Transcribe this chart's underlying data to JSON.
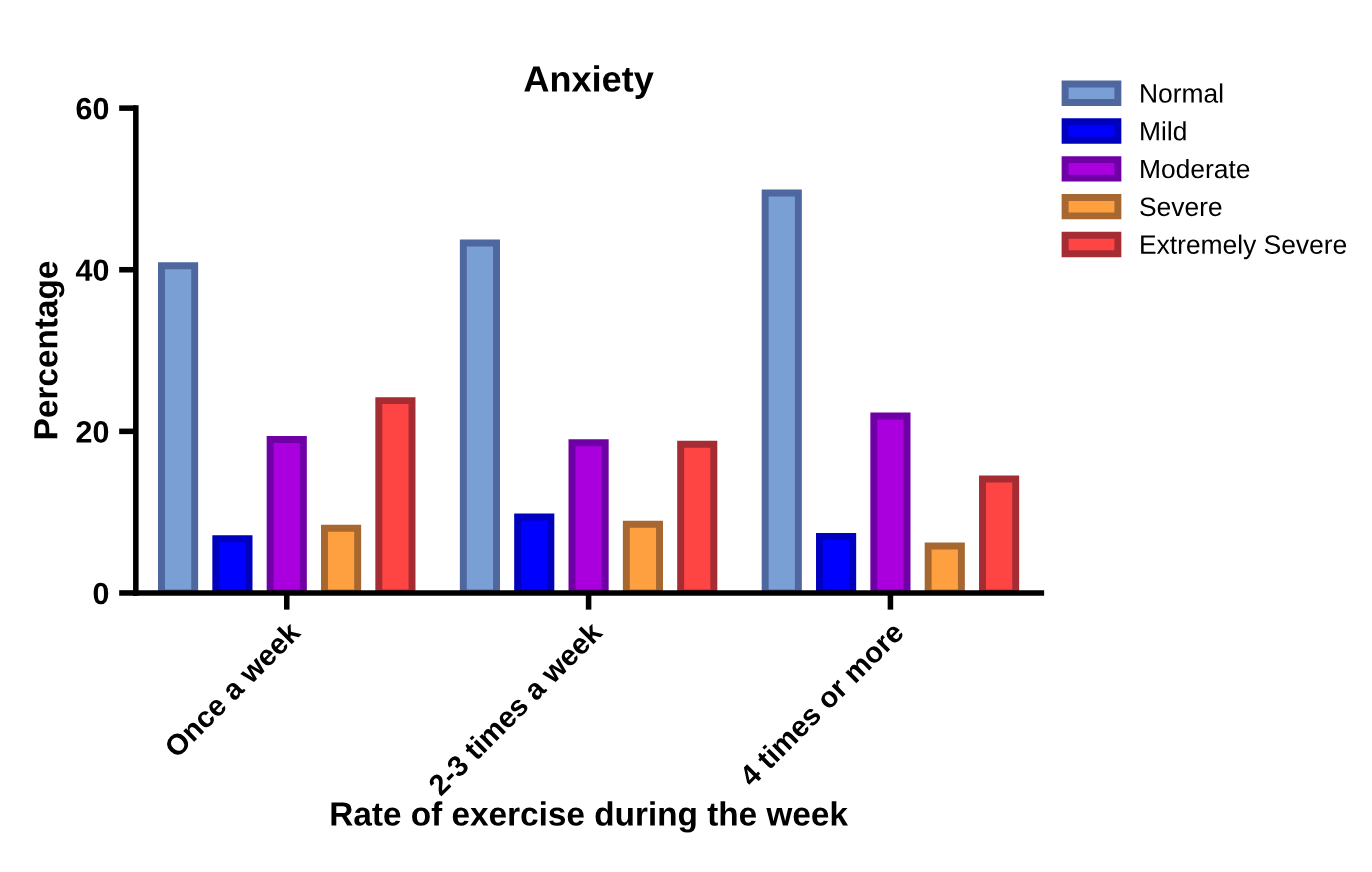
{
  "chart_data": {
    "type": "bar",
    "title": "Anxiety",
    "xlabel": "Rate of exercise during the week",
    "ylabel": "Percentage",
    "categories": [
      "Once a week",
      "2-3 times a week",
      "4 times or more"
    ],
    "series": [
      {
        "name": "Normal",
        "color": "#7a9fd4",
        "values": [
          40.5,
          43.3,
          49.5
        ]
      },
      {
        "name": "Mild",
        "color": "#0000ff",
        "values": [
          6.7,
          9.4,
          7.0
        ]
      },
      {
        "name": "Moderate",
        "color": "#aa00dd",
        "values": [
          19.0,
          18.6,
          21.9
        ]
      },
      {
        "name": "Severe",
        "color": "#ffa040",
        "values": [
          8.0,
          8.5,
          5.8
        ]
      },
      {
        "name": "Extremely Severe",
        "color": "#ff4444",
        "values": [
          23.8,
          18.4,
          14.1
        ]
      }
    ],
    "ylim": [
      0,
      60
    ],
    "yticks": [
      0,
      20,
      40,
      60
    ],
    "grid": false,
    "legend": "top right"
  }
}
